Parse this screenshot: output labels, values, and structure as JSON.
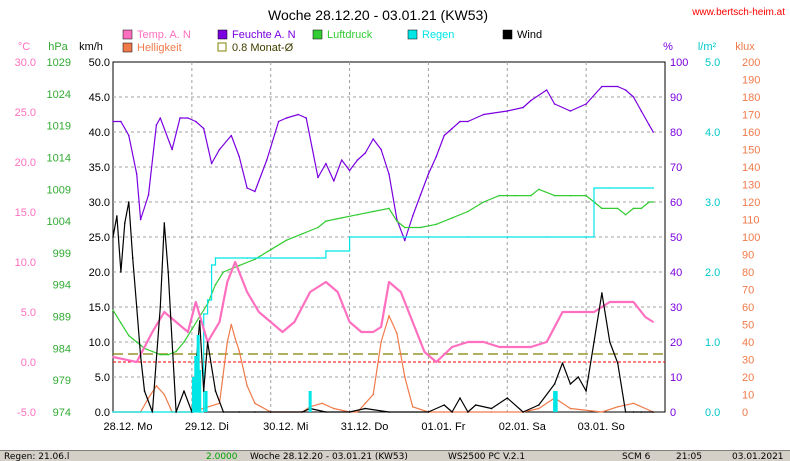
{
  "header": {
    "title": "Woche 28.12.20 - 03.01.21 (KW53)",
    "site": "www.bertsch-heim.at"
  },
  "colors": {
    "temp": "#ff6fc0",
    "humidity": "#7a00e0",
    "pressure": "#33cc33",
    "rain": "#00e5e5",
    "wind": "#000000",
    "light": "#f07a4a",
    "monthly_avg": "#808000",
    "zero_line": "#ff0000",
    "unit_temp": "#ff6fc0",
    "unit_hpa": "#33aa33",
    "unit_pct": "#7a00e0",
    "unit_rain": "#00c8c8",
    "unit_klux": "#f07a4a"
  },
  "chart_data": {
    "type": "line",
    "title": "Woche 28.12.20 - 03.01.21 (KW53)",
    "x_labels": [
      "28.12. Mo",
      "29.12. Di",
      "30.12. Mi",
      "31.12. Do",
      "01.01. Fr",
      "02.01. Sa",
      "03.01. So"
    ],
    "x_range_days": [
      0,
      7
    ],
    "axes": {
      "temp_c": {
        "unit": "°C",
        "ticks": [
          30.0,
          25.0,
          20.0,
          15.0,
          10.0,
          5.0,
          0.0,
          -5.0
        ]
      },
      "pressure_hpa": {
        "unit": "hPa",
        "ticks": [
          1029,
          1024,
          1019,
          1014,
          1009,
          1004,
          999,
          994,
          989,
          984,
          979,
          974
        ]
      },
      "wind_kmh": {
        "unit": "km/h",
        "ticks": [
          50.0,
          45.0,
          40.0,
          35.0,
          30.0,
          25.0,
          20.0,
          15.0,
          10.0,
          5.0,
          0.0
        ]
      },
      "humidity_pct": {
        "unit": "%",
        "ticks": [
          100,
          90,
          80,
          70,
          60,
          50,
          40,
          30,
          20,
          10,
          0
        ]
      },
      "rain_lm2": {
        "unit": "l/m²",
        "ticks": [
          5.0,
          4.0,
          3.0,
          2.0,
          1.0,
          0.0
        ]
      },
      "light_klux": {
        "unit": "klux",
        "ticks": [
          200,
          190,
          180,
          170,
          160,
          150,
          140,
          130,
          120,
          110,
          100,
          90,
          80,
          70,
          60,
          50,
          40,
          30,
          20,
          10,
          0
        ]
      }
    },
    "legend": [
      {
        "label": "Temp. A. N",
        "key": "temp"
      },
      {
        "label": "Feuchte A. N",
        "key": "humidity"
      },
      {
        "label": "Luftdruck",
        "key": "pressure"
      },
      {
        "label": "Regen",
        "key": "rain"
      },
      {
        "label": "Wind",
        "key": "wind"
      },
      {
        "label": "Helligkeit",
        "key": "light"
      },
      {
        "label": "0.8 Monat-Ø",
        "key": "monthly_avg"
      }
    ],
    "monthly_avg_temp_c": 0.8,
    "series": [
      {
        "key": "humidity",
        "axis": "humidity_pct",
        "x": [
          0,
          0.1,
          0.2,
          0.3,
          0.35,
          0.45,
          0.55,
          0.6,
          0.75,
          0.85,
          0.95,
          1.05,
          1.15,
          1.25,
          1.35,
          1.5,
          1.6,
          1.7,
          1.8,
          1.95,
          2.1,
          2.2,
          2.35,
          2.45,
          2.6,
          2.7,
          2.8,
          2.9,
          3.0,
          3.1,
          3.2,
          3.3,
          3.4,
          3.5,
          3.6,
          3.7,
          3.8,
          3.9,
          4.0,
          4.1,
          4.2,
          4.3,
          4.4,
          4.5,
          4.7,
          5.0,
          5.2,
          5.3,
          5.5,
          5.6,
          5.8,
          6.0,
          6.2,
          6.4,
          6.5,
          6.6,
          6.7,
          6.8,
          6.85
        ],
        "y": [
          83,
          83,
          79,
          68,
          55,
          62,
          82,
          84,
          75,
          84,
          84,
          83,
          81,
          71,
          75,
          79,
          73,
          64,
          63,
          72,
          83,
          84,
          85,
          84,
          67,
          71,
          66,
          72,
          69,
          72,
          74,
          78,
          75,
          68,
          55,
          49,
          56,
          62,
          68,
          73,
          79,
          81,
          83,
          83,
          85,
          86,
          87,
          89,
          92,
          88,
          86,
          88,
          93,
          93,
          92,
          90,
          86,
          82,
          80
        ]
      },
      {
        "key": "pressure",
        "axis": "pressure_hpa",
        "x": [
          0,
          0.1,
          0.2,
          0.3,
          0.4,
          0.5,
          0.6,
          0.7,
          0.8,
          0.9,
          1.0,
          1.1,
          1.2,
          1.3,
          1.4,
          1.6,
          1.8,
          2.0,
          2.2,
          2.4,
          2.6,
          2.7,
          2.9,
          3.1,
          3.3,
          3.5,
          3.6,
          3.7,
          3.9,
          4.1,
          4.3,
          4.5,
          4.7,
          4.9,
          5.1,
          5.3,
          5.4,
          5.6,
          5.8,
          6.0,
          6.2,
          6.4,
          6.5,
          6.6,
          6.7,
          6.8,
          6.85
        ],
        "y": [
          990,
          988,
          986,
          985,
          984,
          983.5,
          983,
          983,
          983.5,
          985,
          987,
          989,
          991,
          994,
          996,
          997,
          998,
          999.5,
          1001,
          1002,
          1003,
          1004,
          1004.5,
          1005,
          1005.5,
          1006,
          1004,
          1003,
          1003,
          1003.5,
          1004.5,
          1005.5,
          1007,
          1008,
          1008,
          1008,
          1009,
          1008,
          1008,
          1008,
          1006,
          1006,
          1005,
          1006,
          1006,
          1007,
          1007
        ]
      },
      {
        "key": "temp",
        "axis": "temp_c",
        "x": [
          0,
          0.3,
          0.5,
          0.65,
          0.8,
          0.95,
          1.05,
          1.2,
          1.35,
          1.45,
          1.55,
          1.7,
          1.85,
          2.0,
          2.15,
          2.3,
          2.5,
          2.7,
          2.85,
          3.0,
          3.15,
          3.3,
          3.4,
          3.5,
          3.65,
          3.8,
          3.95,
          4.1,
          4.3,
          4.5,
          4.7,
          4.9,
          5.1,
          5.3,
          5.5,
          5.7,
          5.9,
          6.1,
          6.3,
          6.45,
          6.6,
          6.75,
          6.85
        ],
        "y": [
          0.5,
          0,
          3,
          5,
          4,
          3,
          6,
          2,
          4,
          8,
          10,
          7,
          5,
          4,
          3,
          4,
          7,
          8,
          7,
          4,
          3,
          3,
          3.5,
          8,
          7,
          4,
          1,
          0,
          1.5,
          2,
          2,
          1.5,
          1.5,
          1.5,
          2,
          5,
          5,
          5,
          6,
          6,
          6,
          4.5,
          4
        ]
      },
      {
        "key": "wind",
        "axis": "wind_kmh",
        "x": [
          0,
          0.05,
          0.1,
          0.15,
          0.2,
          0.25,
          0.3,
          0.35,
          0.4,
          0.5,
          0.6,
          0.65,
          0.7,
          0.75,
          0.8,
          0.9,
          1.0,
          1.1,
          1.15,
          1.2,
          1.3,
          1.4,
          1.6,
          1.8,
          2.0,
          2.4,
          2.5,
          2.7,
          3.0,
          3.2,
          3.5,
          4.0,
          4.2,
          4.3,
          4.4,
          4.5,
          4.6,
          4.8,
          5.0,
          5.2,
          5.4,
          5.6,
          5.7,
          5.8,
          5.9,
          6.0,
          6.1,
          6.2,
          6.3,
          6.4,
          6.5,
          6.6,
          6.7,
          6.85
        ],
        "y": [
          25,
          28,
          20,
          27,
          30,
          22,
          15,
          8,
          3,
          0,
          15,
          27,
          20,
          10,
          0,
          3,
          0,
          13,
          3,
          10,
          3,
          0,
          0,
          0,
          0,
          0,
          0.5,
          0,
          0,
          0.5,
          0,
          0,
          1,
          0,
          2,
          0,
          1,
          0.5,
          2,
          0,
          1,
          4,
          7,
          4,
          5,
          3,
          10,
          17,
          10,
          7,
          0,
          0,
          0,
          0
        ]
      },
      {
        "key": "rain",
        "axis": "rain_lm2",
        "x": [
          0,
          1.1,
          1.15,
          1.2,
          1.25,
          1.3,
          1.7,
          2.6,
          2.7,
          3.0,
          3.6,
          4.5,
          5.0,
          5.5,
          6.0,
          6.1,
          6.3,
          6.85
        ],
        "y": [
          0,
          0,
          1.4,
          1.6,
          2.1,
          2.2,
          2.2,
          2.2,
          2.3,
          2.5,
          2.5,
          2.5,
          2.5,
          2.5,
          2.5,
          3.2,
          3.2,
          3.2
        ]
      },
      {
        "key": "light",
        "axis": "light_klux",
        "x": [
          0,
          0.35,
          0.45,
          0.55,
          0.65,
          0.75,
          1.0,
          1.35,
          1.45,
          1.5,
          1.55,
          1.6,
          1.7,
          1.8,
          2.0,
          2.4,
          2.5,
          2.65,
          2.8,
          3.0,
          3.1,
          3.2,
          3.3,
          3.4,
          3.5,
          3.6,
          3.7,
          3.8,
          4.0,
          4.2,
          4.8,
          5.2,
          5.4,
          5.6,
          5.8,
          6.2,
          6.4,
          6.6,
          6.85
        ],
        "y": [
          0,
          0,
          8,
          15,
          10,
          0,
          0,
          5,
          40,
          50,
          42,
          35,
          15,
          5,
          0,
          0,
          3,
          5,
          2,
          0,
          0,
          5,
          10,
          40,
          55,
          45,
          20,
          3,
          0,
          0,
          0,
          0,
          2,
          8,
          2,
          0,
          3,
          5,
          0
        ]
      },
      {
        "key": "rain_bars",
        "axis": "rain_lm2",
        "x": [
          1.02,
          1.05,
          1.08,
          1.1,
          1.18,
          2.5,
          5.6,
          5.62
        ],
        "y": [
          0.5,
          0.8,
          1.1,
          0.6,
          0.3,
          0.3,
          0.3,
          0.3
        ]
      }
    ]
  },
  "status_bar": {
    "left": "Regen: 21.06.l",
    "value": "2.0000",
    "range": "Woche 28.12.20 - 03.01.21 (KW53)",
    "version": "WS2500 PC V.2.1",
    "sensor": "SCM 6",
    "time": "21:05",
    "date": "03.01.2021"
  }
}
